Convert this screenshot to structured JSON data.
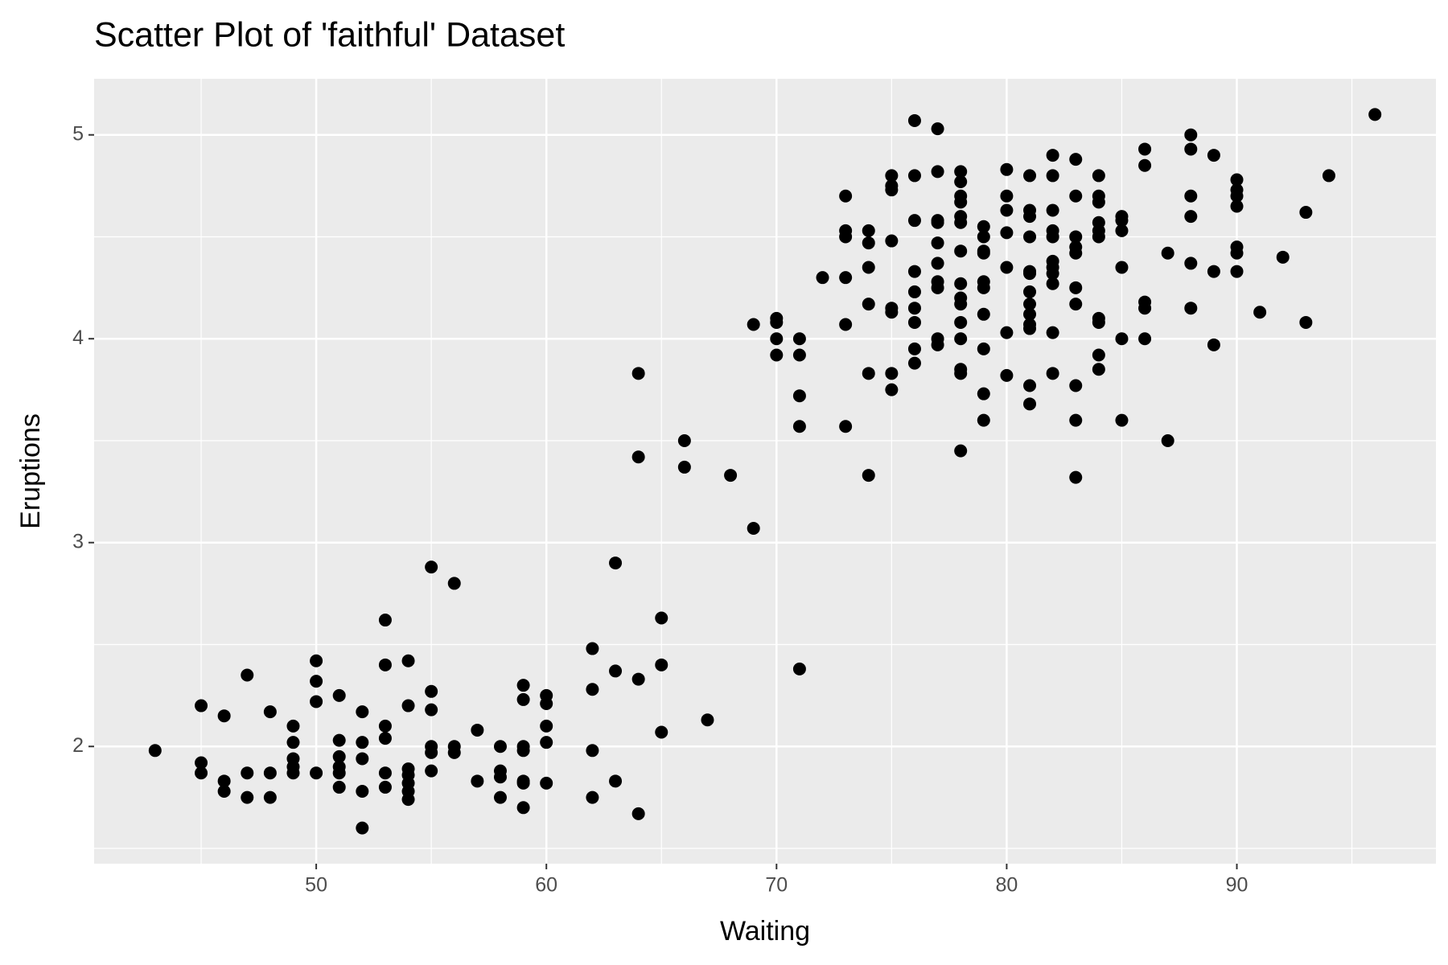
{
  "chart_data": {
    "type": "scatter",
    "title": "Scatter Plot of 'faithful' Dataset",
    "x_label": "Waiting",
    "y_label": "Eruptions",
    "color": "#000000",
    "grid": true,
    "xlim": [
      40.35,
      98.65
    ],
    "ylim": [
      1.425,
      5.275
    ],
    "xticks": [
      50,
      60,
      70,
      80,
      90
    ],
    "yticks": [
      2,
      3,
      4,
      5
    ],
    "x": [
      43,
      45,
      45,
      45,
      46,
      46,
      46,
      47,
      47,
      47,
      48,
      48,
      48,
      49,
      49,
      49,
      49,
      49,
      50,
      50,
      50,
      50,
      51,
      51,
      51,
      51,
      51,
      51,
      52,
      52,
      52,
      52,
      52,
      53,
      53,
      53,
      53,
      53,
      53,
      54,
      54,
      54,
      54,
      54,
      54,
      54,
      55,
      55,
      55,
      55,
      55,
      55,
      56,
      56,
      56,
      57,
      57,
      58,
      58,
      58,
      58,
      59,
      59,
      59,
      59,
      59,
      59,
      59,
      60,
      60,
      60,
      60,
      60,
      62,
      62,
      62,
      62,
      63,
      63,
      63,
      64,
      64,
      64,
      64,
      65,
      65,
      65,
      66,
      66,
      67,
      68,
      69,
      69,
      70,
      70,
      70,
      70,
      71,
      71,
      71,
      71,
      71,
      72,
      73,
      73,
      73,
      73,
      73,
      73,
      74,
      74,
      74,
      74,
      74,
      74,
      75,
      75,
      75,
      75,
      75,
      75,
      75,
      75,
      76,
      76,
      76,
      76,
      76,
      76,
      76,
      76,
      76,
      77,
      77,
      77,
      77,
      77,
      77,
      77,
      77,
      77,
      77,
      78,
      78,
      78,
      78,
      78,
      78,
      78,
      78,
      78,
      78,
      78,
      78,
      78,
      78,
      78,
      79,
      79,
      79,
      79,
      79,
      79,
      79,
      79,
      79,
      79,
      80,
      80,
      80,
      80,
      80,
      80,
      80,
      81,
      81,
      81,
      81,
      81,
      81,
      81,
      81,
      81,
      81,
      81,
      81,
      81,
      82,
      82,
      82,
      82,
      82,
      82,
      82,
      82,
      82,
      82,
      82,
      83,
      83,
      83,
      83,
      83,
      83,
      83,
      83,
      83,
      83,
      84,
      84,
      84,
      84,
      84,
      84,
      84,
      84,
      84,
      84,
      85,
      85,
      85,
      85,
      85,
      85,
      86,
      86,
      86,
      86,
      86,
      87,
      87,
      88,
      88,
      88,
      88,
      88,
      88,
      89,
      89,
      89,
      90,
      90,
      90,
      90,
      90,
      90,
      90,
      91,
      92,
      93,
      93,
      94,
      96
    ],
    "values": [
      1.98,
      2.2,
      1.92,
      1.87,
      2.15,
      1.83,
      1.78,
      2.35,
      1.87,
      1.75,
      2.17,
      1.87,
      1.75,
      2.1,
      2.02,
      1.94,
      1.9,
      1.87,
      2.42,
      2.32,
      2.22,
      1.87,
      2.25,
      2.03,
      1.95,
      1.9,
      1.87,
      1.8,
      2.17,
      2.02,
      1.94,
      1.78,
      1.6,
      2.62,
      2.4,
      2.1,
      2.04,
      1.87,
      1.8,
      2.42,
      2.2,
      1.89,
      1.86,
      1.82,
      1.78,
      1.74,
      2.88,
      2.27,
      2.18,
      2.0,
      1.97,
      1.88,
      2.8,
      2.0,
      1.97,
      2.08,
      1.83,
      2.0,
      1.88,
      1.85,
      1.75,
      2.3,
      2.23,
      2.0,
      1.98,
      1.83,
      1.82,
      1.7,
      2.25,
      2.21,
      2.1,
      2.02,
      1.82,
      2.48,
      2.28,
      1.98,
      1.75,
      2.9,
      2.37,
      1.83,
      3.83,
      3.42,
      2.33,
      1.67,
      2.63,
      2.4,
      2.07,
      3.5,
      3.37,
      2.13,
      3.33,
      4.07,
      3.07,
      4.1,
      4.08,
      4.0,
      3.92,
      4.0,
      3.92,
      3.72,
      3.57,
      2.38,
      4.3,
      4.7,
      4.53,
      4.5,
      4.3,
      4.07,
      3.57,
      4.53,
      4.47,
      4.35,
      4.17,
      3.83,
      3.33,
      4.8,
      4.75,
      4.73,
      4.48,
      4.15,
      4.13,
      3.83,
      3.75,
      5.07,
      4.8,
      4.58,
      4.33,
      4.23,
      4.15,
      4.08,
      3.95,
      3.88,
      5.03,
      4.82,
      4.58,
      4.57,
      4.47,
      4.37,
      4.28,
      4.25,
      4.0,
      3.97,
      4.82,
      4.77,
      4.7,
      4.67,
      4.6,
      4.57,
      4.43,
      4.27,
      4.2,
      4.17,
      4.08,
      4.0,
      3.85,
      3.83,
      3.45,
      4.55,
      4.5,
      4.43,
      4.42,
      4.28,
      4.25,
      4.12,
      3.95,
      3.73,
      3.6,
      4.83,
      4.7,
      4.63,
      4.52,
      4.35,
      4.03,
      3.82,
      4.8,
      4.63,
      4.6,
      4.5,
      4.33,
      4.32,
      4.23,
      4.17,
      4.12,
      4.07,
      4.05,
      3.77,
      3.68,
      4.9,
      4.8,
      4.63,
      4.53,
      4.5,
      4.38,
      4.35,
      4.32,
      4.27,
      4.03,
      3.83,
      4.88,
      4.7,
      4.5,
      4.45,
      4.42,
      4.25,
      4.17,
      3.77,
      3.6,
      3.32,
      4.8,
      4.7,
      4.67,
      4.57,
      4.53,
      4.5,
      4.1,
      4.08,
      3.92,
      3.85,
      4.6,
      4.58,
      4.53,
      4.35,
      4.0,
      3.6,
      4.93,
      4.85,
      4.18,
      4.15,
      4.0,
      4.42,
      3.5,
      5.0,
      4.93,
      4.7,
      4.6,
      4.37,
      4.15,
      4.9,
      4.33,
      3.97,
      4.78,
      4.73,
      4.7,
      4.65,
      4.45,
      4.42,
      4.33,
      4.13,
      4.4,
      4.62,
      4.08,
      4.8,
      5.1
    ]
  }
}
